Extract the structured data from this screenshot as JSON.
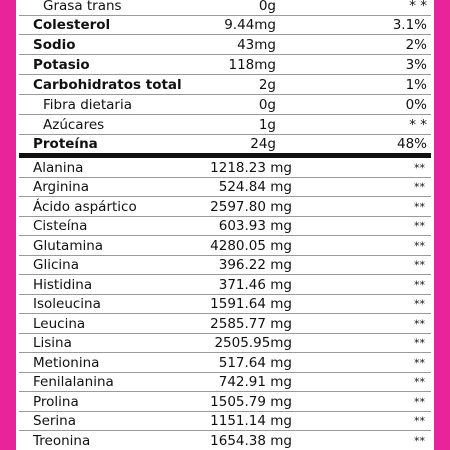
{
  "nutrients": [
    {
      "name": "Grasa trans",
      "amount": "0g",
      "dv": "* *",
      "bold": false,
      "indent": true
    },
    {
      "name": "Colesterol",
      "amount": "9.44mg",
      "dv": "3.1%",
      "bold": true,
      "indent": false
    },
    {
      "name": "Sodio",
      "amount": "43mg",
      "dv": "2%",
      "bold": true,
      "indent": false
    },
    {
      "name": "Potasio",
      "amount": "118mg",
      "dv": "3%",
      "bold": true,
      "indent": false
    },
    {
      "name": "Carbohidratos total",
      "amount": "2g",
      "dv": "1%",
      "bold": true,
      "indent": false
    },
    {
      "name": "Fibra dietaria",
      "amount": "0g",
      "dv": "0%",
      "bold": false,
      "indent": true
    },
    {
      "name": "Azúcares",
      "amount": "1g",
      "dv": "* *",
      "bold": false,
      "indent": true
    },
    {
      "name": "Proteína",
      "amount": "24g",
      "dv": "48%",
      "bold": true,
      "indent": false
    }
  ],
  "amino_acids": [
    {
      "name": "Alanina",
      "amount": "1218.23 mg",
      "dv": "**"
    },
    {
      "name": "Arginina",
      "amount": "524.84 mg",
      "dv": "**"
    },
    {
      "name": "Ácido aspártico",
      "amount": "2597.80 mg",
      "dv": "**"
    },
    {
      "name": "Cisteína",
      "amount": "603.93 mg",
      "dv": "**"
    },
    {
      "name": "Glutamina",
      "amount": "4280.05 mg",
      "dv": "**"
    },
    {
      "name": "Glicina",
      "amount": "396.22 mg",
      "dv": "**"
    },
    {
      "name": "Histidina",
      "amount": "371.46 mg",
      "dv": "**"
    },
    {
      "name": "Isoleucina",
      "amount": "1591.64 mg",
      "dv": "**"
    },
    {
      "name": "Leucina",
      "amount": "2585.77 mg",
      "dv": "**"
    },
    {
      "name": "Lisina",
      "amount": "2505.95mg",
      "dv": "**"
    },
    {
      "name": "Metionina",
      "amount": "517.64 mg",
      "dv": "**"
    },
    {
      "name": "Fenilalanina",
      "amount": "742.91 mg",
      "dv": "**"
    },
    {
      "name": "Prolina",
      "amount": "1505.79 mg",
      "dv": "**"
    },
    {
      "name": "Serina",
      "amount": "1151.14 mg",
      "dv": "**"
    },
    {
      "name": "Treonina",
      "amount": "1654.38 mg",
      "dv": "**"
    }
  ],
  "colors": {
    "frame": "#e9239a",
    "divider": "#111111"
  }
}
